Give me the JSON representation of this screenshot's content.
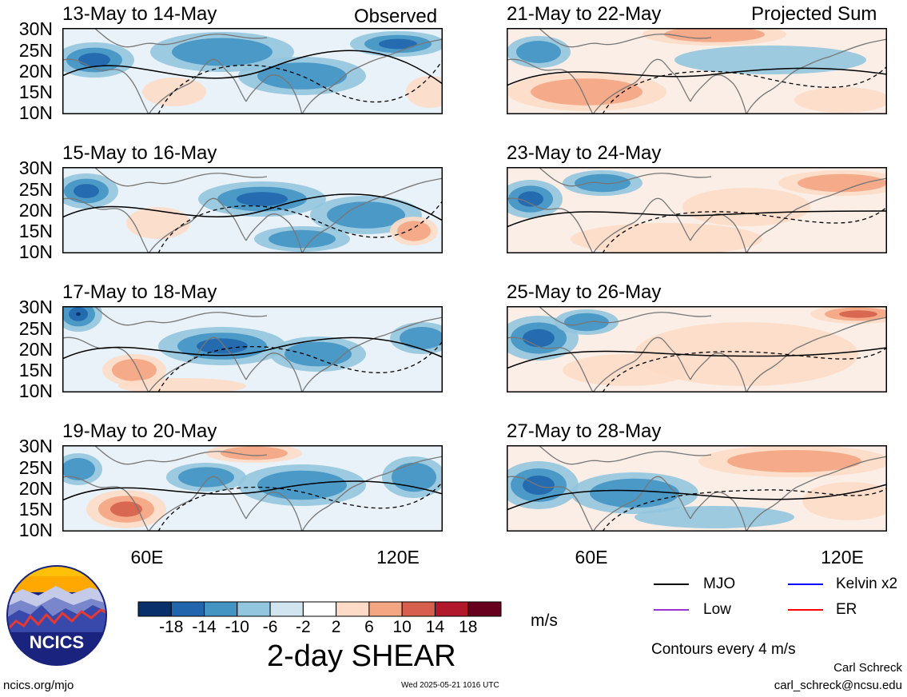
{
  "left_column": {
    "tag": "Observed",
    "panels": [
      {
        "title": "13-May to 14-May"
      },
      {
        "title": "15-May to 16-May"
      },
      {
        "title": "17-May to 18-May"
      },
      {
        "title": "19-May to 20-May"
      }
    ]
  },
  "right_column": {
    "tag": "Projected Sum",
    "panels": [
      {
        "title": "21-May to 22-May"
      },
      {
        "title": "23-May to 24-May"
      },
      {
        "title": "25-May to 26-May"
      },
      {
        "title": "27-May to 28-May"
      }
    ]
  },
  "lat_labels": [
    "30N",
    "25N",
    "20N",
    "15N",
    "10N"
  ],
  "lon_labels": [
    "60E",
    "120E"
  ],
  "colorbar": {
    "title": "2-day SHEAR",
    "units": "m/s",
    "tick_labels": [
      "-18",
      "-14",
      "-10",
      "-6",
      "-2",
      "2",
      "6",
      "10",
      "14",
      "18"
    ],
    "colors": [
      "#08306b",
      "#2166ac",
      "#4393c3",
      "#92c5de",
      "#d1e5f0",
      "#ffffff",
      "#fddbc7",
      "#f4a582",
      "#d6604d",
      "#b2182b",
      "#67001f"
    ]
  },
  "legend": {
    "items": [
      {
        "label": "MJO",
        "color": "#000000"
      },
      {
        "label": "Kelvin x2",
        "color": "#0000ff"
      },
      {
        "label": "Low",
        "color": "#9933cc"
      },
      {
        "label": "ER",
        "color": "#ff0000"
      }
    ],
    "note": "Contours every 4 m/s"
  },
  "footer": {
    "site": "ncics.org/mjo",
    "timestamp": "Wed 2025-05-21 1016 UTC",
    "author": "Carl Schreck",
    "email": "carl_schreck@ncsu.edu"
  },
  "logo": {
    "text": "NCICS"
  }
}
